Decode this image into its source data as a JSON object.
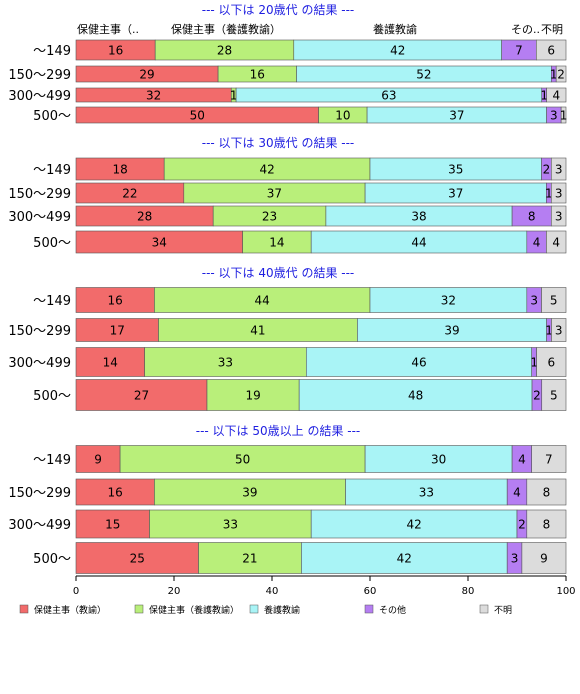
{
  "chart_data": {
    "type": "bar",
    "orientation": "horizontal",
    "stacked": true,
    "categories_legend": [
      "保健主事（教諭）",
      "保健主事（養護教諭）",
      "養護教諭",
      "その他",
      "不明"
    ],
    "column_headers": [
      "保健主事（..",
      "保健主事（養護教諭）",
      "養護教諭",
      "その..",
      "不明"
    ],
    "colors": [
      "#f26b6b",
      "#b9ef7a",
      "#a9f4f6",
      "#b57ef2",
      "#dcdcdc"
    ],
    "xlim": [
      0,
      100
    ],
    "xticks": [
      "0",
      "20",
      "40",
      "60",
      "80",
      "100"
    ],
    "panels": [
      {
        "title": "--- 以下は 20歳代 の結果 ---",
        "rows": [
          {
            "label": "～149",
            "values": [
              16,
              28,
              42,
              7,
              6
            ]
          },
          {
            "label": "150～299",
            "values": [
              29,
              16,
              52,
              1,
              2
            ]
          },
          {
            "label": "300～499",
            "values": [
              32,
              1,
              63,
              1,
              4
            ]
          },
          {
            "label": "500～",
            "values": [
              50,
              10,
              37,
              3,
              1
            ]
          }
        ]
      },
      {
        "title": "--- 以下は 30歳代 の結果 ---",
        "rows": [
          {
            "label": "～149",
            "values": [
              18,
              42,
              35,
              2,
              3
            ]
          },
          {
            "label": "150～299",
            "values": [
              22,
              37,
              37,
              1,
              3
            ]
          },
          {
            "label": "300～499",
            "values": [
              28,
              23,
              38,
              8,
              3
            ]
          },
          {
            "label": "500～",
            "values": [
              34,
              14,
              44,
              4,
              4
            ]
          }
        ]
      },
      {
        "title": "--- 以下は 40歳代 の結果 ---",
        "rows": [
          {
            "label": "～149",
            "values": [
              16,
              44,
              32,
              3,
              5
            ]
          },
          {
            "label": "150～299",
            "values": [
              17,
              41,
              39,
              1,
              3
            ]
          },
          {
            "label": "300～499",
            "values": [
              14,
              33,
              46,
              1,
              6
            ]
          },
          {
            "label": "500～",
            "values": [
              27,
              19,
              48,
              2,
              5
            ]
          }
        ]
      },
      {
        "title": "--- 以下は 50歳以上 の結果 ---",
        "rows": [
          {
            "label": "～149",
            "values": [
              9,
              50,
              30,
              4,
              7
            ]
          },
          {
            "label": "150～299",
            "values": [
              16,
              39,
              33,
              4,
              8
            ]
          },
          {
            "label": "300～499",
            "values": [
              15,
              33,
              42,
              2,
              8
            ]
          },
          {
            "label": "500～",
            "values": [
              25,
              21,
              42,
              3,
              9
            ]
          }
        ]
      }
    ]
  }
}
